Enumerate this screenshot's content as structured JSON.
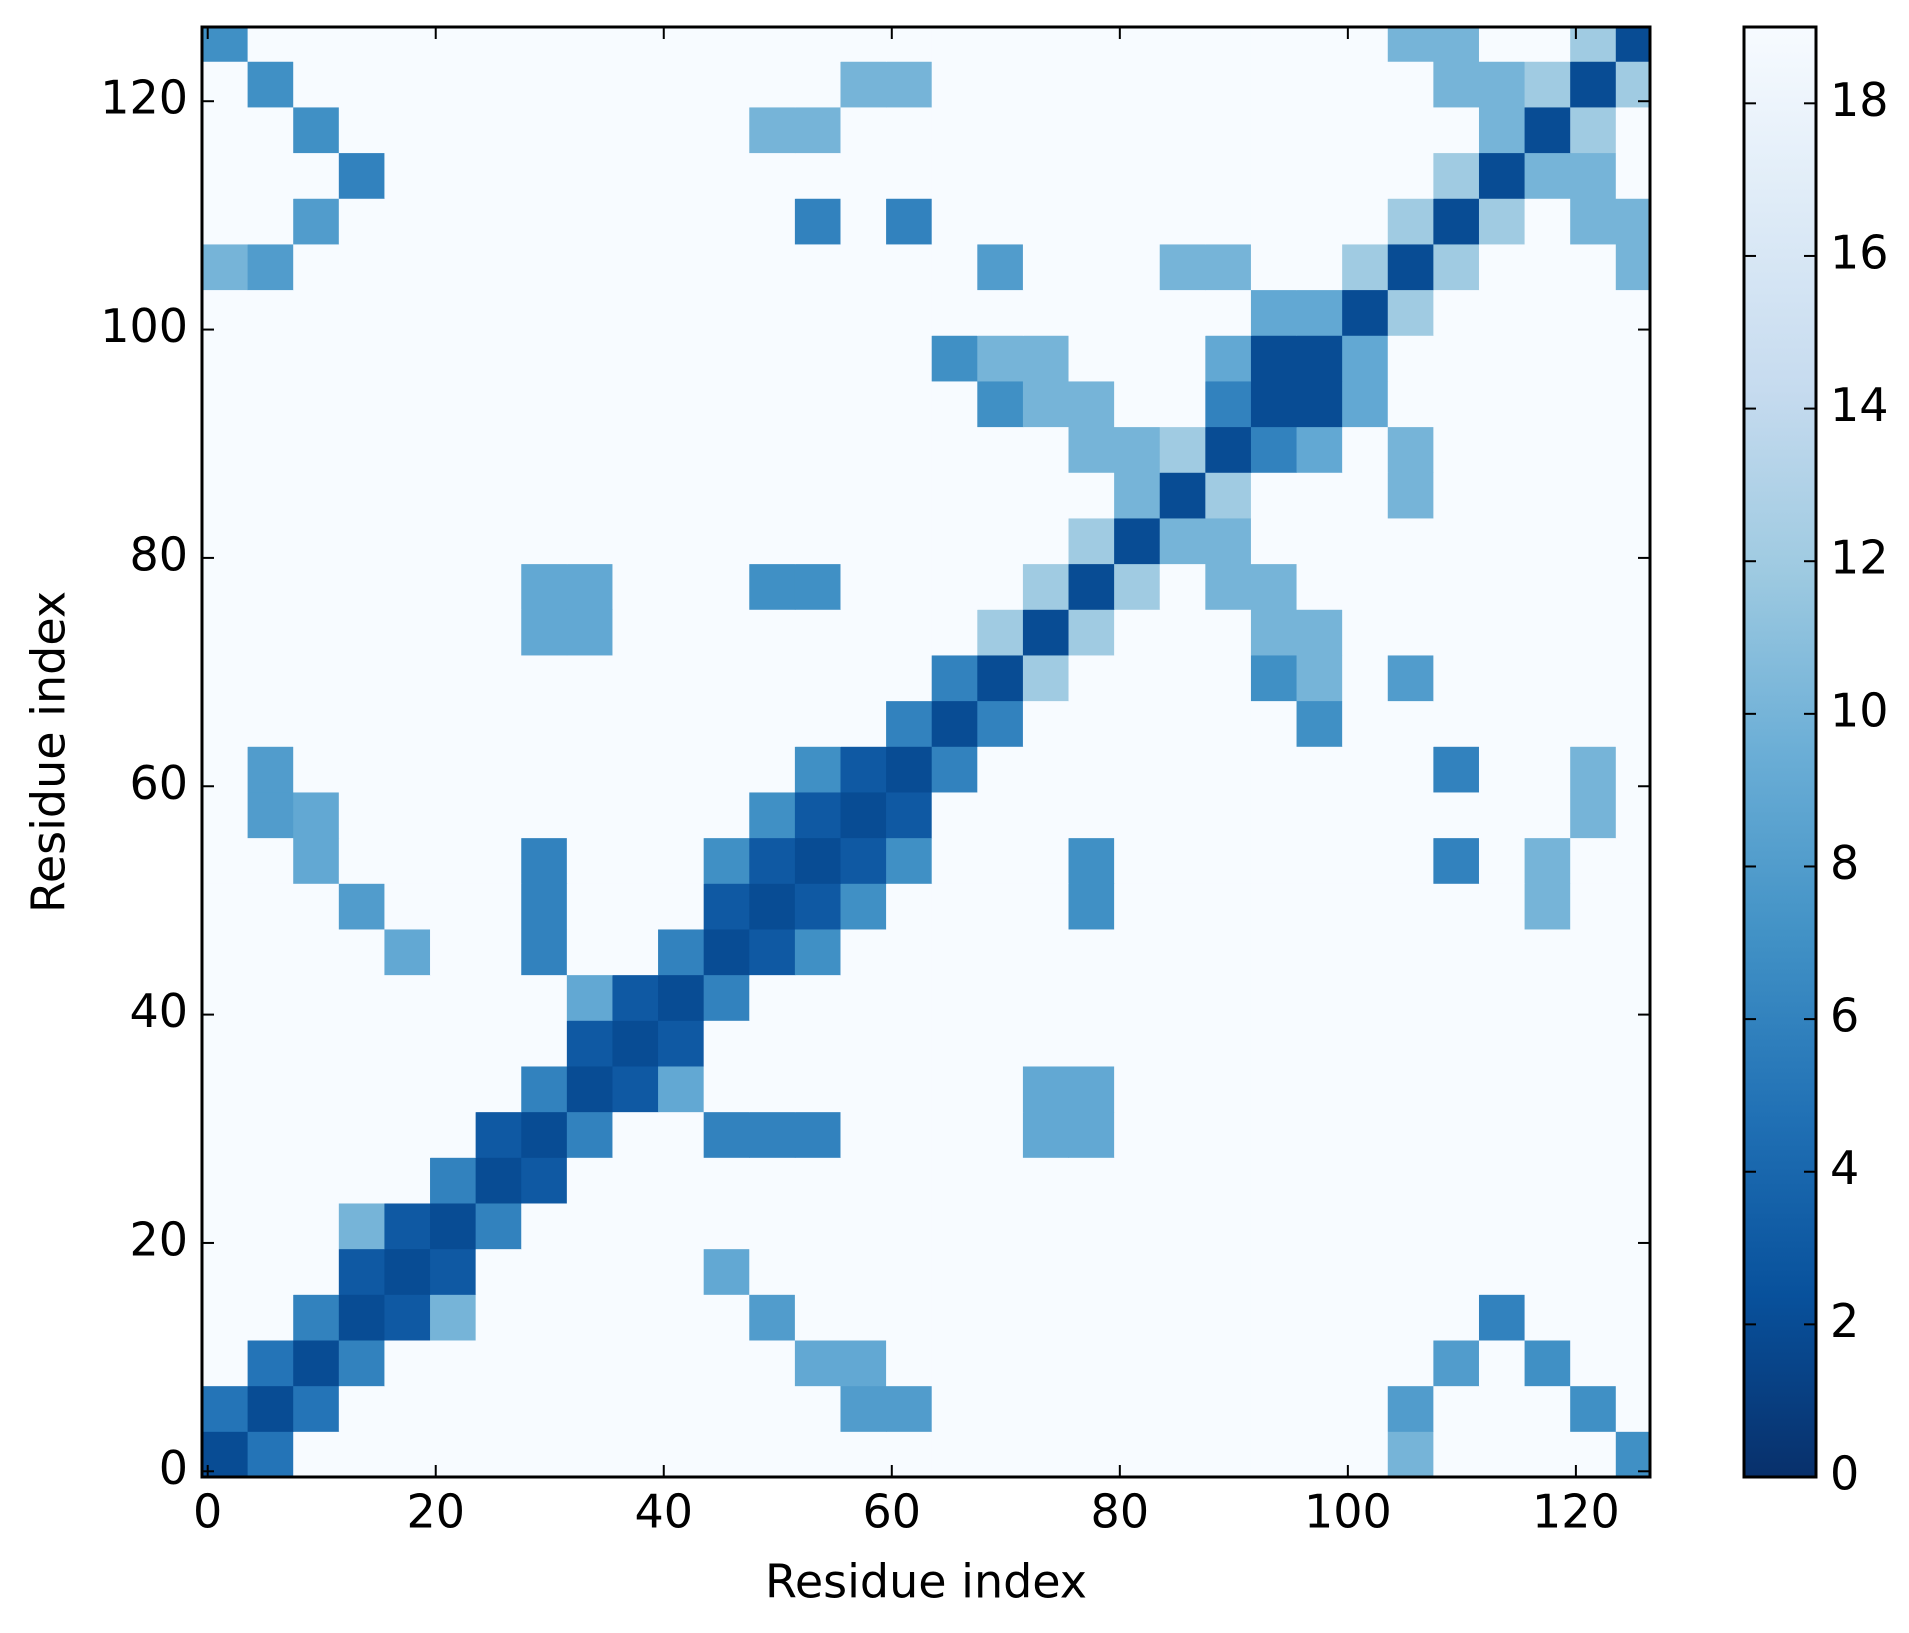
{
  "chart_data": {
    "type": "heatmap",
    "xlabel": "Residue index",
    "ylabel": "Residue index",
    "xlim": [
      -0.5,
      126.5
    ],
    "ylim": [
      -0.5,
      126.5
    ],
    "xticks": [
      0,
      20,
      40,
      60,
      80,
      100,
      120
    ],
    "yticks": [
      0,
      20,
      40,
      60,
      80,
      100,
      120
    ],
    "bins": [
      -0.5,
      3.5,
      7.5,
      11.5,
      15.5,
      19.5,
      23.5,
      27.5,
      31.5,
      35.5,
      39.5,
      43.5,
      47.5,
      51.5,
      55.5,
      59.5,
      63.5,
      67.5,
      71.5,
      75.5,
      79.5,
      83.5,
      87.5,
      91.5,
      95.5,
      99.5,
      103.5,
      107.5,
      111.5,
      115.5,
      119.5,
      123.5,
      127.5
    ],
    "colormap": [
      "#08306b",
      "#08519c",
      "#2171b5",
      "#4292c6",
      "#6baed6",
      "#9ecae1",
      "#c6dbef",
      "#deebf7",
      "#f7fbff"
    ],
    "clim": [
      0,
      19
    ],
    "cticks": [
      0,
      2,
      4,
      6,
      8,
      10,
      12,
      14,
      16,
      18
    ],
    "z": [
      [
        2,
        5,
        19,
        19,
        19,
        19,
        19,
        19,
        19,
        19,
        19,
        19,
        19,
        19,
        19,
        19,
        19,
        19,
        19,
        19,
        19,
        19,
        19,
        19,
        19,
        19,
        10,
        19,
        19,
        19,
        19,
        7
      ],
      [
        5,
        2,
        5,
        19,
        19,
        19,
        19,
        19,
        19,
        19,
        19,
        19,
        19,
        19,
        8,
        8,
        19,
        19,
        19,
        19,
        19,
        19,
        19,
        19,
        19,
        19,
        8,
        19,
        19,
        19,
        7,
        19
      ],
      [
        19,
        5,
        2,
        6,
        19,
        19,
        19,
        19,
        19,
        19,
        19,
        19,
        19,
        9,
        9,
        19,
        19,
        19,
        19,
        19,
        19,
        19,
        19,
        19,
        19,
        19,
        19,
        8,
        19,
        7,
        19,
        19
      ],
      [
        19,
        19,
        6,
        2,
        3,
        10,
        19,
        19,
        19,
        19,
        19,
        19,
        8,
        19,
        19,
        19,
        19,
        19,
        19,
        19,
        19,
        19,
        19,
        19,
        19,
        19,
        19,
        19,
        6,
        19,
        19,
        19
      ],
      [
        19,
        19,
        19,
        3,
        2,
        3,
        19,
        19,
        19,
        19,
        19,
        9,
        19,
        19,
        19,
        19,
        19,
        19,
        19,
        19,
        19,
        19,
        19,
        19,
        19,
        19,
        19,
        19,
        19,
        19,
        19,
        19
      ],
      [
        19,
        19,
        19,
        10,
        3,
        2,
        6,
        19,
        19,
        19,
        19,
        19,
        19,
        19,
        19,
        19,
        19,
        19,
        19,
        19,
        19,
        19,
        19,
        19,
        19,
        19,
        19,
        19,
        19,
        19,
        19,
        19
      ],
      [
        19,
        19,
        19,
        19,
        19,
        6,
        2,
        3,
        19,
        19,
        19,
        19,
        19,
        19,
        19,
        19,
        19,
        19,
        19,
        19,
        19,
        19,
        19,
        19,
        19,
        19,
        19,
        19,
        19,
        19,
        19,
        19
      ],
      [
        19,
        19,
        19,
        19,
        19,
        19,
        3,
        2,
        6,
        19,
        19,
        6,
        6,
        6,
        19,
        19,
        19,
        19,
        9,
        9,
        19,
        19,
        19,
        19,
        19,
        19,
        19,
        19,
        19,
        19,
        19,
        19
      ],
      [
        19,
        19,
        19,
        19,
        19,
        19,
        19,
        6,
        2,
        3,
        9,
        19,
        19,
        19,
        19,
        19,
        19,
        19,
        9,
        9,
        19,
        19,
        19,
        19,
        19,
        19,
        19,
        19,
        19,
        19,
        19,
        19
      ],
      [
        19,
        19,
        19,
        19,
        19,
        19,
        19,
        19,
        3,
        2,
        3,
        19,
        19,
        19,
        19,
        19,
        19,
        19,
        19,
        19,
        19,
        19,
        19,
        19,
        19,
        19,
        19,
        19,
        19,
        19,
        19,
        19
      ],
      [
        19,
        19,
        19,
        19,
        19,
        19,
        19,
        19,
        9,
        3,
        2,
        6,
        19,
        19,
        19,
        19,
        19,
        19,
        19,
        19,
        19,
        19,
        19,
        19,
        19,
        19,
        19,
        19,
        19,
        19,
        19,
        19
      ],
      [
        19,
        19,
        19,
        19,
        9,
        19,
        19,
        6,
        19,
        19,
        6,
        2,
        3,
        7,
        19,
        19,
        19,
        19,
        19,
        19,
        19,
        19,
        19,
        19,
        19,
        19,
        19,
        19,
        19,
        19,
        19,
        19
      ],
      [
        19,
        19,
        19,
        8,
        19,
        19,
        19,
        6,
        19,
        19,
        19,
        3,
        2,
        3,
        7,
        19,
        19,
        19,
        19,
        7,
        19,
        19,
        19,
        19,
        19,
        19,
        19,
        19,
        19,
        10,
        19,
        19
      ],
      [
        19,
        19,
        9,
        19,
        19,
        19,
        19,
        6,
        19,
        19,
        19,
        7,
        3,
        2,
        3,
        7,
        19,
        19,
        19,
        7,
        19,
        19,
        19,
        19,
        19,
        19,
        19,
        6,
        19,
        10,
        19,
        19
      ],
      [
        19,
        8,
        9,
        19,
        19,
        19,
        19,
        19,
        19,
        19,
        19,
        19,
        7,
        3,
        2,
        3,
        19,
        19,
        19,
        19,
        19,
        19,
        19,
        19,
        19,
        19,
        19,
        19,
        19,
        19,
        10,
        19
      ],
      [
        19,
        8,
        19,
        19,
        19,
        19,
        19,
        19,
        19,
        19,
        19,
        19,
        19,
        7,
        3,
        2,
        6,
        19,
        19,
        19,
        19,
        19,
        19,
        19,
        19,
        19,
        19,
        6,
        19,
        19,
        10,
        19
      ],
      [
        19,
        19,
        19,
        19,
        19,
        19,
        19,
        19,
        19,
        19,
        19,
        19,
        19,
        19,
        19,
        6,
        2,
        6,
        19,
        19,
        19,
        19,
        19,
        19,
        7,
        19,
        19,
        19,
        19,
        19,
        19,
        19
      ],
      [
        19,
        19,
        19,
        19,
        19,
        19,
        19,
        19,
        19,
        19,
        19,
        19,
        19,
        19,
        19,
        19,
        6,
        2,
        12,
        19,
        19,
        19,
        19,
        7,
        10,
        19,
        8,
        19,
        19,
        19,
        19,
        19
      ],
      [
        19,
        19,
        19,
        19,
        19,
        19,
        19,
        9,
        9,
        19,
        19,
        19,
        19,
        19,
        19,
        19,
        19,
        12,
        2,
        12,
        19,
        19,
        19,
        10,
        10,
        19,
        19,
        19,
        19,
        19,
        19,
        19
      ],
      [
        19,
        19,
        19,
        19,
        19,
        19,
        19,
        9,
        9,
        19,
        19,
        19,
        7,
        7,
        19,
        19,
        19,
        19,
        12,
        2,
        12,
        19,
        10,
        10,
        19,
        19,
        19,
        19,
        19,
        19,
        19,
        19
      ],
      [
        19,
        19,
        19,
        19,
        19,
        19,
        19,
        19,
        19,
        19,
        19,
        19,
        19,
        19,
        19,
        19,
        19,
        19,
        19,
        12,
        2,
        10,
        10,
        19,
        19,
        19,
        19,
        19,
        19,
        19,
        19,
        19
      ],
      [
        19,
        19,
        19,
        19,
        19,
        19,
        19,
        19,
        19,
        19,
        19,
        19,
        19,
        19,
        19,
        19,
        19,
        19,
        19,
        19,
        10,
        2,
        12,
        19,
        19,
        19,
        10,
        19,
        19,
        19,
        19,
        19
      ],
      [
        19,
        19,
        19,
        19,
        19,
        19,
        19,
        19,
        19,
        19,
        19,
        19,
        19,
        19,
        19,
        19,
        19,
        19,
        19,
        10,
        10,
        12,
        2,
        6,
        9,
        19,
        10,
        19,
        19,
        19,
        19,
        19
      ],
      [
        19,
        19,
        19,
        19,
        19,
        19,
        19,
        19,
        19,
        19,
        19,
        19,
        19,
        19,
        19,
        19,
        19,
        7,
        10,
        10,
        19,
        19,
        6,
        2,
        2,
        9,
        19,
        19,
        19,
        19,
        19,
        19
      ],
      [
        19,
        19,
        19,
        19,
        19,
        19,
        19,
        19,
        19,
        19,
        19,
        19,
        19,
        19,
        19,
        19,
        7,
        10,
        10,
        19,
        19,
        19,
        9,
        2,
        2,
        9,
        19,
        19,
        19,
        19,
        19,
        19
      ],
      [
        19,
        19,
        19,
        19,
        19,
        19,
        19,
        19,
        19,
        19,
        19,
        19,
        19,
        19,
        19,
        19,
        19,
        19,
        19,
        19,
        19,
        19,
        19,
        9,
        9,
        2,
        12,
        19,
        19,
        19,
        19,
        19
      ],
      [
        10,
        8,
        19,
        19,
        19,
        19,
        19,
        19,
        19,
        19,
        19,
        19,
        19,
        19,
        19,
        19,
        19,
        8,
        19,
        19,
        19,
        10,
        10,
        19,
        19,
        12,
        2,
        12,
        19,
        19,
        19,
        10
      ],
      [
        19,
        19,
        8,
        19,
        19,
        19,
        19,
        19,
        19,
        19,
        19,
        19,
        19,
        6,
        19,
        6,
        19,
        19,
        19,
        19,
        19,
        19,
        19,
        19,
        19,
        19,
        12,
        2,
        12,
        19,
        10,
        10
      ],
      [
        19,
        19,
        19,
        6,
        19,
        19,
        19,
        19,
        19,
        19,
        19,
        19,
        19,
        19,
        19,
        19,
        19,
        19,
        19,
        19,
        19,
        19,
        19,
        19,
        19,
        19,
        19,
        12,
        2,
        10,
        10,
        19
      ],
      [
        19,
        19,
        7,
        19,
        19,
        19,
        19,
        19,
        19,
        19,
        19,
        19,
        10,
        10,
        19,
        19,
        19,
        19,
        19,
        19,
        19,
        19,
        19,
        19,
        19,
        19,
        19,
        19,
        10,
        2,
        12,
        19
      ],
      [
        19,
        7,
        19,
        19,
        19,
        19,
        19,
        19,
        19,
        19,
        19,
        19,
        19,
        19,
        10,
        10,
        19,
        19,
        19,
        19,
        19,
        19,
        19,
        19,
        19,
        19,
        19,
        10,
        10,
        12,
        2,
        12
      ],
      [
        7,
        19,
        19,
        19,
        19,
        19,
        19,
        19,
        19,
        19,
        19,
        19,
        19,
        19,
        19,
        19,
        19,
        19,
        19,
        19,
        19,
        19,
        19,
        19,
        19,
        19,
        10,
        10,
        19,
        19,
        12,
        2
      ]
    ]
  }
}
